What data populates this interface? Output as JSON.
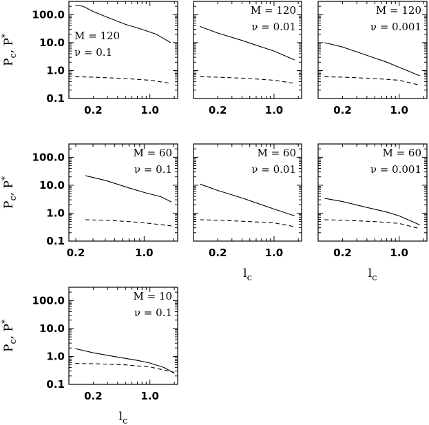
{
  "ylabel": "P",
  "ylabel_sub": "c",
  "ylabel_tail": ", P",
  "ylabel_sup": "*",
  "xlabel": "l",
  "xlabel_sub": "c",
  "chart_data": [
    {
      "type": "line",
      "annotation_m": "M = 120",
      "annotation_nu": "ν = 0.1",
      "xlim": [
        0.1,
        2.2
      ],
      "ylim": [
        0.1,
        300
      ],
      "log_x": true,
      "log_y": true,
      "ytick_labels": [
        "0.1",
        "1.0",
        "10.0",
        "100.0"
      ],
      "xtick_labels": [
        "0.2",
        "1.0"
      ],
      "series": [
        {
          "style": "solid",
          "x": [
            0.12,
            0.15,
            0.2,
            0.3,
            0.5,
            0.8,
            1.2,
            1.8
          ],
          "y": [
            220,
            200,
            130,
            80,
            45,
            30,
            20,
            10
          ]
        },
        {
          "style": "dashed",
          "x": [
            0.12,
            0.2,
            0.5,
            1.0,
            1.8
          ],
          "y": [
            0.6,
            0.58,
            0.52,
            0.45,
            0.35
          ]
        }
      ]
    },
    {
      "type": "line",
      "annotation_m": "M = 120",
      "annotation_nu": "ν = 0.01",
      "xlim": [
        0.1,
        2.2
      ],
      "ylim": [
        0.1,
        300
      ],
      "log_x": true,
      "log_y": true,
      "ytick_labels": [],
      "xtick_labels": [
        "0.2",
        "1.0"
      ],
      "series": [
        {
          "style": "solid",
          "x": [
            0.12,
            0.2,
            0.4,
            0.7,
            1.0,
            1.8
          ],
          "y": [
            38,
            22,
            12,
            7,
            5,
            2.4
          ]
        },
        {
          "style": "dashed",
          "x": [
            0.12,
            0.2,
            0.5,
            1.0,
            1.8
          ],
          "y": [
            0.6,
            0.58,
            0.52,
            0.45,
            0.35
          ]
        }
      ]
    },
    {
      "type": "line",
      "annotation_m": "M = 120",
      "annotation_nu": "ν = 0.001",
      "xlim": [
        0.1,
        2.2
      ],
      "ylim": [
        0.1,
        300
      ],
      "log_x": true,
      "log_y": true,
      "ytick_labels": [],
      "xtick_labels": [
        "0.2",
        "1.0"
      ],
      "series": [
        {
          "style": "solid",
          "x": [
            0.12,
            0.2,
            0.4,
            0.7,
            1.0,
            1.8
          ],
          "y": [
            10,
            7,
            3.5,
            2,
            1.3,
            0.65
          ]
        },
        {
          "style": "dashed",
          "x": [
            0.12,
            0.2,
            0.5,
            1.0,
            1.8
          ],
          "y": [
            0.6,
            0.58,
            0.52,
            0.45,
            0.3
          ]
        }
      ]
    },
    {
      "type": "line",
      "annotation_m": "M = 60",
      "annotation_nu": "ν = 0.1",
      "xlim": [
        0.17,
        2.2
      ],
      "ylim": [
        0.1,
        300
      ],
      "log_x": true,
      "log_y": true,
      "ytick_labels": [
        "0.1",
        "1.0",
        "10.0",
        "100.0"
      ],
      "xtick_labels": [
        "0.2",
        "1.0"
      ],
      "series": [
        {
          "style": "solid",
          "x": [
            0.25,
            0.4,
            0.7,
            1.0,
            1.5,
            1.9
          ],
          "y": [
            22,
            15,
            8,
            5.5,
            3.8,
            2.5
          ]
        },
        {
          "style": "dashed",
          "x": [
            0.25,
            0.4,
            0.7,
            1.0,
            1.9
          ],
          "y": [
            0.58,
            0.56,
            0.5,
            0.45,
            0.35
          ]
        }
      ]
    },
    {
      "type": "line",
      "annotation_m": "M = 60",
      "annotation_nu": "ν = 0.01",
      "xlim": [
        0.1,
        2.2
      ],
      "ylim": [
        0.1,
        300
      ],
      "log_x": true,
      "log_y": true,
      "ytick_labels": [],
      "xtick_labels": [
        "0.2",
        "1.0"
      ],
      "series": [
        {
          "style": "solid",
          "x": [
            0.12,
            0.2,
            0.4,
            0.7,
            1.0,
            1.8
          ],
          "y": [
            11,
            6.5,
            3.5,
            2,
            1.4,
            0.8
          ]
        },
        {
          "style": "dashed",
          "x": [
            0.12,
            0.2,
            0.5,
            1.0,
            1.8
          ],
          "y": [
            0.58,
            0.56,
            0.5,
            0.45,
            0.33
          ]
        }
      ]
    },
    {
      "type": "line",
      "annotation_m": "M = 60",
      "annotation_nu": "ν = 0.001",
      "xlim": [
        0.1,
        2.2
      ],
      "ylim": [
        0.1,
        300
      ],
      "log_x": true,
      "log_y": true,
      "ytick_labels": [],
      "xtick_labels": [
        "0.2",
        "1.0"
      ],
      "series": [
        {
          "style": "solid",
          "x": [
            0.12,
            0.2,
            0.4,
            0.7,
            1.0,
            1.8
          ],
          "y": [
            3.4,
            2.6,
            1.6,
            1.1,
            0.8,
            0.38
          ]
        },
        {
          "style": "dashed",
          "x": [
            0.12,
            0.2,
            0.5,
            1.0,
            1.8
          ],
          "y": [
            0.58,
            0.56,
            0.5,
            0.43,
            0.28
          ]
        }
      ]
    },
    {
      "type": "line",
      "annotation_m": "M = 10",
      "annotation_nu": "ν = 0.1",
      "xlim": [
        0.1,
        2.2
      ],
      "ylim": [
        0.1,
        300
      ],
      "log_x": true,
      "log_y": true,
      "ytick_labels": [
        "0.1",
        "1.0",
        "10.0",
        "100.0"
      ],
      "xtick_labels": [
        "0.2",
        "1.0"
      ],
      "series": [
        {
          "style": "solid",
          "x": [
            0.12,
            0.2,
            0.4,
            0.7,
            1.0,
            1.5,
            2.0
          ],
          "y": [
            1.9,
            1.35,
            0.95,
            0.72,
            0.58,
            0.4,
            0.25
          ]
        },
        {
          "style": "dashed",
          "x": [
            0.12,
            0.2,
            0.5,
            1.0,
            2.0
          ],
          "y": [
            0.56,
            0.55,
            0.5,
            0.42,
            0.27
          ]
        }
      ]
    }
  ]
}
